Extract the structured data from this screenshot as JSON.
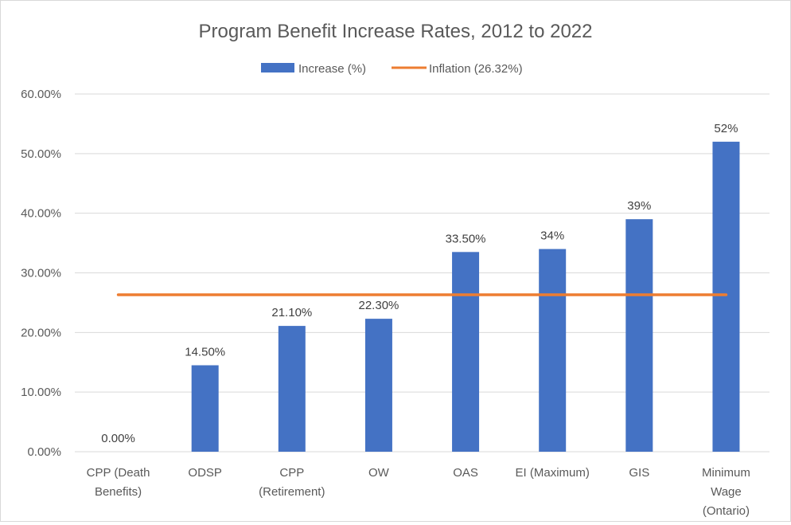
{
  "chart_data": {
    "type": "bar",
    "title": "Program Benefit Increase Rates, 2012 to 2022",
    "categories": [
      [
        "CPP (Death",
        "Benefits)"
      ],
      [
        "ODSP"
      ],
      [
        "CPP",
        "(Retirement)"
      ],
      [
        "OW"
      ],
      [
        "OAS"
      ],
      [
        "EI (Maximum)"
      ],
      [
        "GIS"
      ],
      [
        "Minimum",
        "Wage",
        "(Ontario)"
      ]
    ],
    "series": [
      {
        "name": "Increase (%)",
        "type": "bar",
        "color": "#4472C4",
        "values": [
          0,
          14.5,
          21.1,
          22.3,
          33.5,
          34,
          39,
          52
        ],
        "data_labels": [
          "0.00%",
          "14.50%",
          "21.10%",
          "22.30%",
          "33.50%",
          "34%",
          "39%",
          "52%"
        ]
      },
      {
        "name": "Inflation (26.32%)",
        "type": "line",
        "color": "#ED7D31",
        "value": 26.32
      }
    ],
    "ylim": [
      0,
      60
    ],
    "yticks": [
      0,
      10,
      20,
      30,
      40,
      50,
      60
    ],
    "ytick_labels": [
      "0.00%",
      "10.00%",
      "20.00%",
      "30.00%",
      "40.00%",
      "50.00%",
      "60.00%"
    ],
    "grid": true,
    "legend_position": "top",
    "xlabel": "",
    "ylabel": ""
  }
}
